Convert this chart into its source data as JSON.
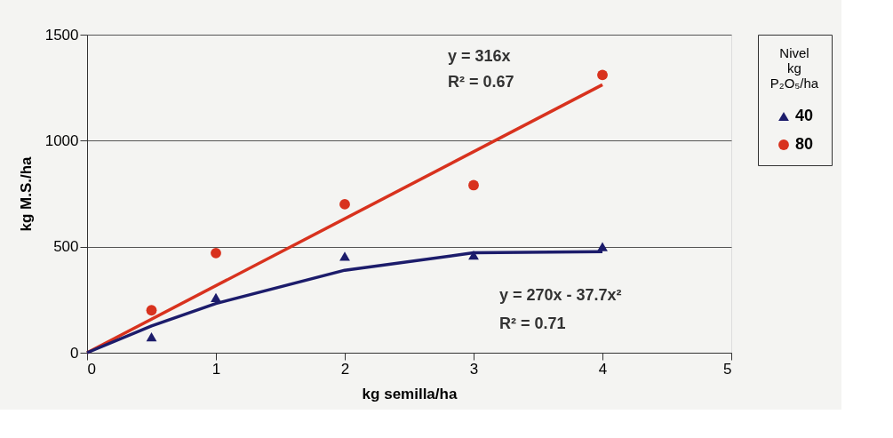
{
  "chart_data": {
    "type": "scatter",
    "xlabel": "kg semilla/ha",
    "ylabel": "kg M.S./ha",
    "legend_title": "Nivel\nkg\nP₂O₅/ha",
    "legend": "right",
    "grid": "y",
    "xlim": [
      0,
      5
    ],
    "xticks": [
      0,
      1,
      2,
      3,
      4,
      5
    ],
    "ylim": [
      0,
      1500
    ],
    "yticks": [
      0,
      500,
      1000,
      1500
    ],
    "series": [
      {
        "name": "40",
        "marker": "triangle",
        "color": "#1c1c6b",
        "x": [
          0.5,
          1,
          2,
          3,
          4
        ],
        "values": [
          75,
          260,
          455,
          460,
          500
        ]
      },
      {
        "name": "80",
        "marker": "circle",
        "color": "#d8321e",
        "x": [
          0.5,
          1,
          2,
          3,
          4
        ],
        "values": [
          200,
          470,
          700,
          790,
          1310
        ]
      },
      {
        "type": "line",
        "marker": "none",
        "line_style": "solid",
        "color": "#d8321e",
        "x": [
          0,
          4
        ],
        "values": [
          0,
          1264
        ]
      },
      {
        "type": "line",
        "marker": "none",
        "line_style": "solid",
        "color": "#1c1c6b",
        "x": [
          0,
          0.5,
          1,
          2,
          3,
          4
        ],
        "values": [
          0,
          126,
          232,
          389,
          471,
          477
        ]
      }
    ],
    "annotations": [
      "y = 316x",
      "R² = 0.67",
      "y = 270x - 37.7x²",
      "R² = 0.71"
    ]
  }
}
